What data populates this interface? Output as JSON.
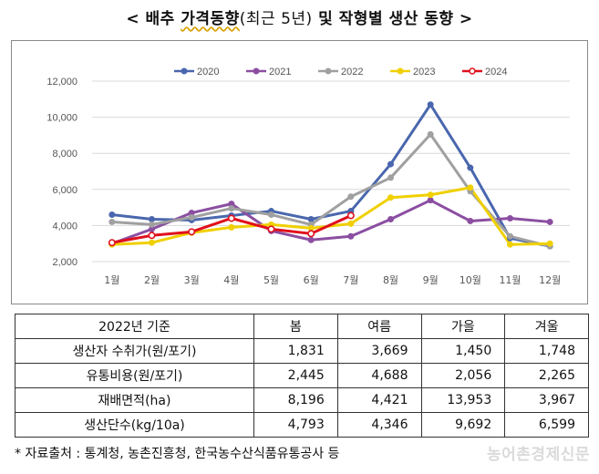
{
  "title": {
    "prefix": "<",
    "part1": "배추 ",
    "part2": "가격동향",
    "part3": "(최근 5년)",
    "part4": " 및 작형별 생산 동향 ",
    "suffix": ">"
  },
  "chart_data": {
    "type": "line",
    "categories": [
      "1월",
      "2월",
      "3월",
      "4월",
      "5월",
      "6월",
      "7월",
      "8월",
      "9월",
      "10월",
      "11월",
      "12월"
    ],
    "ylim": [
      2000,
      12000
    ],
    "yticks": [
      "2,000",
      "4,000",
      "6,000",
      "8,000",
      "10,000",
      "12,000"
    ],
    "ytick_values": [
      2000,
      4000,
      6000,
      8000,
      10000,
      12000
    ],
    "grid": "horizontal",
    "legend_position": "top",
    "series": [
      {
        "name": "2020",
        "color": "#4a67ae",
        "marker": "filled",
        "values": [
          4600,
          4350,
          4300,
          4550,
          4800,
          4350,
          4800,
          7400,
          10700,
          7200,
          3300,
          2850
        ]
      },
      {
        "name": "2021",
        "color": "#8b4ea1",
        "marker": "filled",
        "values": [
          3000,
          3800,
          4700,
          5200,
          3700,
          3200,
          3400,
          4350,
          5400,
          4250,
          4400,
          4200
        ]
      },
      {
        "name": "2022",
        "color": "#a0a0a0",
        "marker": "filled",
        "values": [
          4200,
          4050,
          4450,
          4950,
          4600,
          4050,
          5600,
          6650,
          9050,
          5900,
          3400,
          2850
        ]
      },
      {
        "name": "2023",
        "color": "#f0d000",
        "marker": "filled",
        "values": [
          2950,
          3050,
          3600,
          3900,
          4050,
          3850,
          4100,
          5550,
          5700,
          6100,
          2950,
          3000
        ]
      },
      {
        "name": "2024",
        "color": "#e0101c",
        "marker": "open",
        "values": [
          3050,
          3450,
          3650,
          4400,
          3800,
          3550,
          4550,
          null,
          null,
          null,
          null,
          null
        ]
      }
    ]
  },
  "table": {
    "headers": [
      "2022년 기준",
      "봄",
      "여름",
      "가을",
      "겨울"
    ],
    "rows": [
      {
        "label": "생산자 수취가(원/포기)",
        "values": [
          "1,831",
          "3,669",
          "1,450",
          "1,748"
        ]
      },
      {
        "label": "유통비용(원/포기)",
        "values": [
          "2,445",
          "4,688",
          "2,056",
          "2,265"
        ]
      },
      {
        "label": "재배면적(ha)",
        "values": [
          "8,196",
          "4,421",
          "13,953",
          "3,967"
        ]
      },
      {
        "label": "생산단수(kg/10a)",
        "values": [
          "4,793",
          "4,346",
          "9,692",
          "6,599"
        ]
      }
    ]
  },
  "footnote": "* 자료출처 : 통계청, 농촌진흥청, 한국농수산식품유통공사 등",
  "watermark": "농어촌경제신문"
}
